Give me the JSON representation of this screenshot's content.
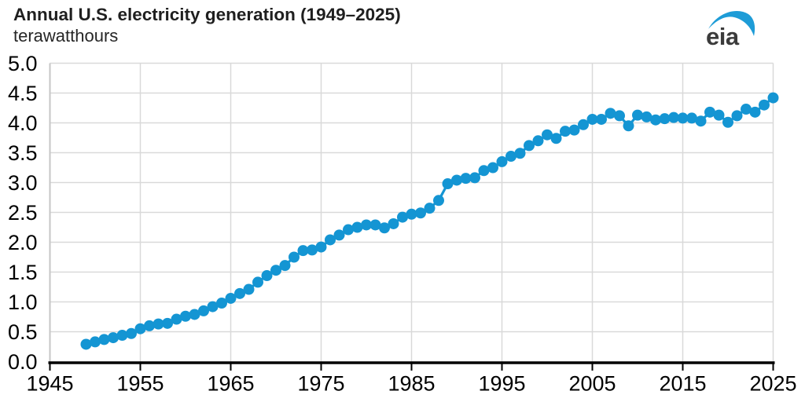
{
  "header": {
    "title": "Annual U.S. electricity generation (1949–2025)",
    "subtitle": "terawatthours",
    "logo_text": "eia"
  },
  "chart_data": {
    "type": "line",
    "title": "Annual U.S. electricity generation (1949–2025)",
    "ylabel_unit": "terawatthours",
    "xlim": [
      1945,
      2025
    ],
    "ylim": [
      0,
      5
    ],
    "x_ticks": [
      1945,
      1955,
      1965,
      1975,
      1985,
      1995,
      2005,
      2015,
      2025
    ],
    "y_ticks": [
      "0.0",
      "0.5",
      "1.0",
      "1.5",
      "2.0",
      "2.5",
      "3.0",
      "3.5",
      "4.0",
      "4.5",
      "5.0"
    ],
    "grid": true,
    "legend": "none",
    "marker": "circle",
    "series_name": "Total U.S. electricity generation",
    "x": [
      1949,
      1950,
      1951,
      1952,
      1953,
      1954,
      1955,
      1956,
      1957,
      1958,
      1959,
      1960,
      1961,
      1962,
      1963,
      1964,
      1965,
      1966,
      1967,
      1968,
      1969,
      1970,
      1971,
      1972,
      1973,
      1974,
      1975,
      1976,
      1977,
      1978,
      1979,
      1980,
      1981,
      1982,
      1983,
      1984,
      1985,
      1986,
      1987,
      1988,
      1989,
      1990,
      1991,
      1992,
      1993,
      1994,
      1995,
      1996,
      1997,
      1998,
      1999,
      2000,
      2001,
      2002,
      2003,
      2004,
      2005,
      2006,
      2007,
      2008,
      2009,
      2010,
      2011,
      2012,
      2013,
      2014,
      2015,
      2016,
      2017,
      2018,
      2019,
      2020,
      2021,
      2022,
      2023,
      2024,
      2025
    ],
    "values": [
      0.29,
      0.33,
      0.37,
      0.4,
      0.44,
      0.47,
      0.55,
      0.6,
      0.63,
      0.64,
      0.71,
      0.76,
      0.79,
      0.85,
      0.92,
      0.98,
      1.06,
      1.14,
      1.21,
      1.33,
      1.44,
      1.53,
      1.61,
      1.75,
      1.86,
      1.87,
      1.92,
      2.04,
      2.12,
      2.21,
      2.25,
      2.29,
      2.29,
      2.24,
      2.31,
      2.42,
      2.47,
      2.49,
      2.57,
      2.7,
      2.98,
      3.04,
      3.07,
      3.08,
      3.2,
      3.25,
      3.35,
      3.44,
      3.49,
      3.62,
      3.7,
      3.8,
      3.74,
      3.86,
      3.88,
      3.97,
      4.06,
      4.06,
      4.16,
      4.12,
      3.95,
      4.13,
      4.1,
      4.05,
      4.07,
      4.09,
      4.08,
      4.08,
      4.03,
      4.18,
      4.13,
      4.01,
      4.12,
      4.23,
      4.18,
      4.3,
      4.42
    ],
    "colors": {
      "line": "#1495d3",
      "grid": "#d9d9d9",
      "axis_y": "#c6c6c6",
      "axis_x": "#000000",
      "tick_text": "#000000",
      "logo_swoosh": "#1e9cd7",
      "logo_text": "#3b3b3b"
    }
  }
}
